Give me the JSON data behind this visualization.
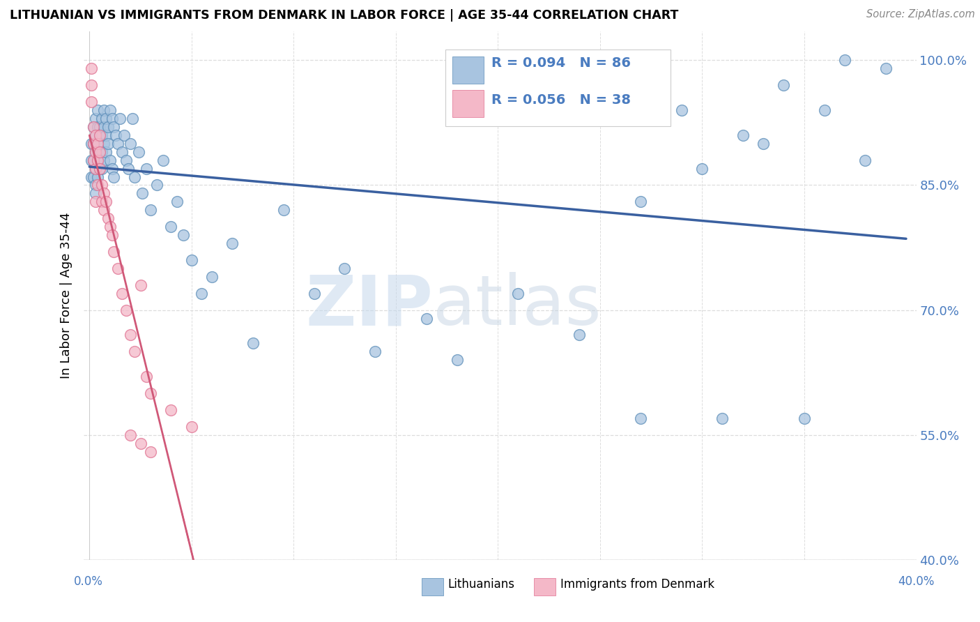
{
  "title": "LITHUANIAN VS IMMIGRANTS FROM DENMARK IN LABOR FORCE | AGE 35-44 CORRELATION CHART",
  "source": "Source: ZipAtlas.com",
  "ylabel": "In Labor Force | Age 35-44",
  "ylabel_right_ticks": [
    "100.0%",
    "85.0%",
    "70.0%",
    "55.0%",
    "40.0%"
  ],
  "ylabel_right_values": [
    1.0,
    0.85,
    0.7,
    0.55,
    0.4
  ],
  "xlim": [
    0.0,
    0.4
  ],
  "ylim": [
    0.4,
    1.035
  ],
  "blue_R": 0.094,
  "blue_N": 86,
  "pink_R": 0.056,
  "pink_N": 38,
  "blue_color": "#A8C4E0",
  "blue_edge_color": "#5B8DB8",
  "pink_color": "#F4B8C8",
  "pink_edge_color": "#E07090",
  "blue_line_color": "#3A60A0",
  "pink_line_color": "#D05878",
  "watermark_zip_color": "#C8D8E8",
  "watermark_atlas_color": "#B0C8D8",
  "legend_border_color": "#CCCCCC",
  "grid_color": "#DDDDDD",
  "axis_label_color": "#4A7CC0",
  "blue_points_x": [
    0.001,
    0.001,
    0.001,
    0.002,
    0.002,
    0.002,
    0.002,
    0.003,
    0.003,
    0.003,
    0.003,
    0.003,
    0.003,
    0.004,
    0.004,
    0.004,
    0.004,
    0.004,
    0.005,
    0.005,
    0.005,
    0.005,
    0.006,
    0.006,
    0.006,
    0.006,
    0.007,
    0.007,
    0.007,
    0.007,
    0.008,
    0.008,
    0.008,
    0.009,
    0.009,
    0.01,
    0.01,
    0.011,
    0.011,
    0.012,
    0.012,
    0.013,
    0.014,
    0.015,
    0.016,
    0.017,
    0.018,
    0.019,
    0.02,
    0.021,
    0.022,
    0.024,
    0.026,
    0.028,
    0.03,
    0.033,
    0.036,
    0.04,
    0.043,
    0.046,
    0.05,
    0.055,
    0.06,
    0.07,
    0.08,
    0.095,
    0.11,
    0.125,
    0.14,
    0.165,
    0.18,
    0.21,
    0.24,
    0.27,
    0.3,
    0.33,
    0.36,
    0.39,
    0.27,
    0.31,
    0.35,
    0.38,
    0.32,
    0.29,
    0.34,
    0.37
  ],
  "blue_points_y": [
    0.9,
    0.88,
    0.86,
    0.92,
    0.9,
    0.88,
    0.86,
    0.93,
    0.91,
    0.89,
    0.87,
    0.85,
    0.84,
    0.94,
    0.92,
    0.9,
    0.88,
    0.86,
    0.92,
    0.91,
    0.89,
    0.87,
    0.93,
    0.91,
    0.89,
    0.87,
    0.94,
    0.92,
    0.9,
    0.88,
    0.93,
    0.91,
    0.89,
    0.92,
    0.9,
    0.94,
    0.88,
    0.93,
    0.87,
    0.92,
    0.86,
    0.91,
    0.9,
    0.93,
    0.89,
    0.91,
    0.88,
    0.87,
    0.9,
    0.93,
    0.86,
    0.89,
    0.84,
    0.87,
    0.82,
    0.85,
    0.88,
    0.8,
    0.83,
    0.79,
    0.76,
    0.72,
    0.74,
    0.78,
    0.66,
    0.82,
    0.72,
    0.75,
    0.65,
    0.69,
    0.64,
    0.72,
    0.67,
    0.83,
    0.87,
    0.9,
    0.94,
    0.99,
    0.57,
    0.57,
    0.57,
    0.88,
    0.91,
    0.94,
    0.97,
    1.0
  ],
  "pink_points_x": [
    0.001,
    0.001,
    0.001,
    0.002,
    0.002,
    0.002,
    0.003,
    0.003,
    0.003,
    0.003,
    0.004,
    0.004,
    0.004,
    0.005,
    0.005,
    0.005,
    0.006,
    0.006,
    0.007,
    0.007,
    0.008,
    0.009,
    0.01,
    0.011,
    0.012,
    0.014,
    0.016,
    0.018,
    0.02,
    0.022,
    0.025,
    0.028,
    0.03,
    0.04,
    0.05,
    0.02,
    0.025,
    0.03
  ],
  "pink_points_y": [
    0.99,
    0.97,
    0.95,
    0.92,
    0.9,
    0.88,
    0.91,
    0.89,
    0.87,
    0.83,
    0.9,
    0.88,
    0.85,
    0.91,
    0.89,
    0.87,
    0.85,
    0.83,
    0.84,
    0.82,
    0.83,
    0.81,
    0.8,
    0.79,
    0.77,
    0.75,
    0.72,
    0.7,
    0.67,
    0.65,
    0.73,
    0.62,
    0.6,
    0.58,
    0.56,
    0.55,
    0.54,
    0.53
  ]
}
